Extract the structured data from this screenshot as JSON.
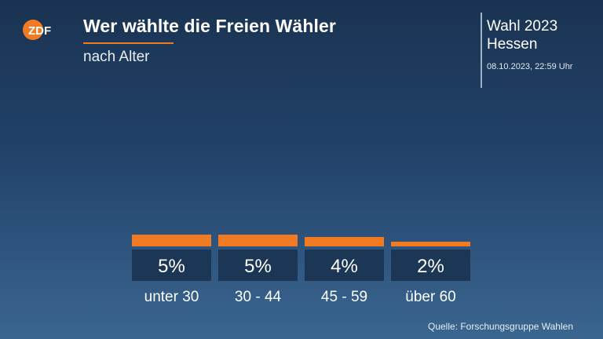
{
  "header": {
    "logo_text": "ZDF",
    "title": "Wer wählte die Freien Wähler",
    "subtitle": "nach Alter"
  },
  "election": {
    "name": "Wahl 2023",
    "region": "Hessen",
    "datetime": "08.10.2023, 22:59 Uhr"
  },
  "source": "Quelle: Forschungsgruppe Wahlen",
  "colors": {
    "accent": "#f07b22",
    "value_box": "#1c3655",
    "background_top": "#1a3352",
    "background_bottom": "#3a6690"
  },
  "chart_data": {
    "type": "bar",
    "categories": [
      "unter 30",
      "30 - 44",
      "45 - 59",
      "über 60"
    ],
    "values": [
      5,
      5,
      4,
      2
    ],
    "value_labels": [
      "5%",
      "5%",
      "4%",
      "2%"
    ],
    "unit": "%",
    "title": "Wer wählte die Freien Wähler",
    "subtitle": "nach Alter",
    "xlabel": "",
    "ylabel": "",
    "grid": false,
    "legend": "none"
  }
}
